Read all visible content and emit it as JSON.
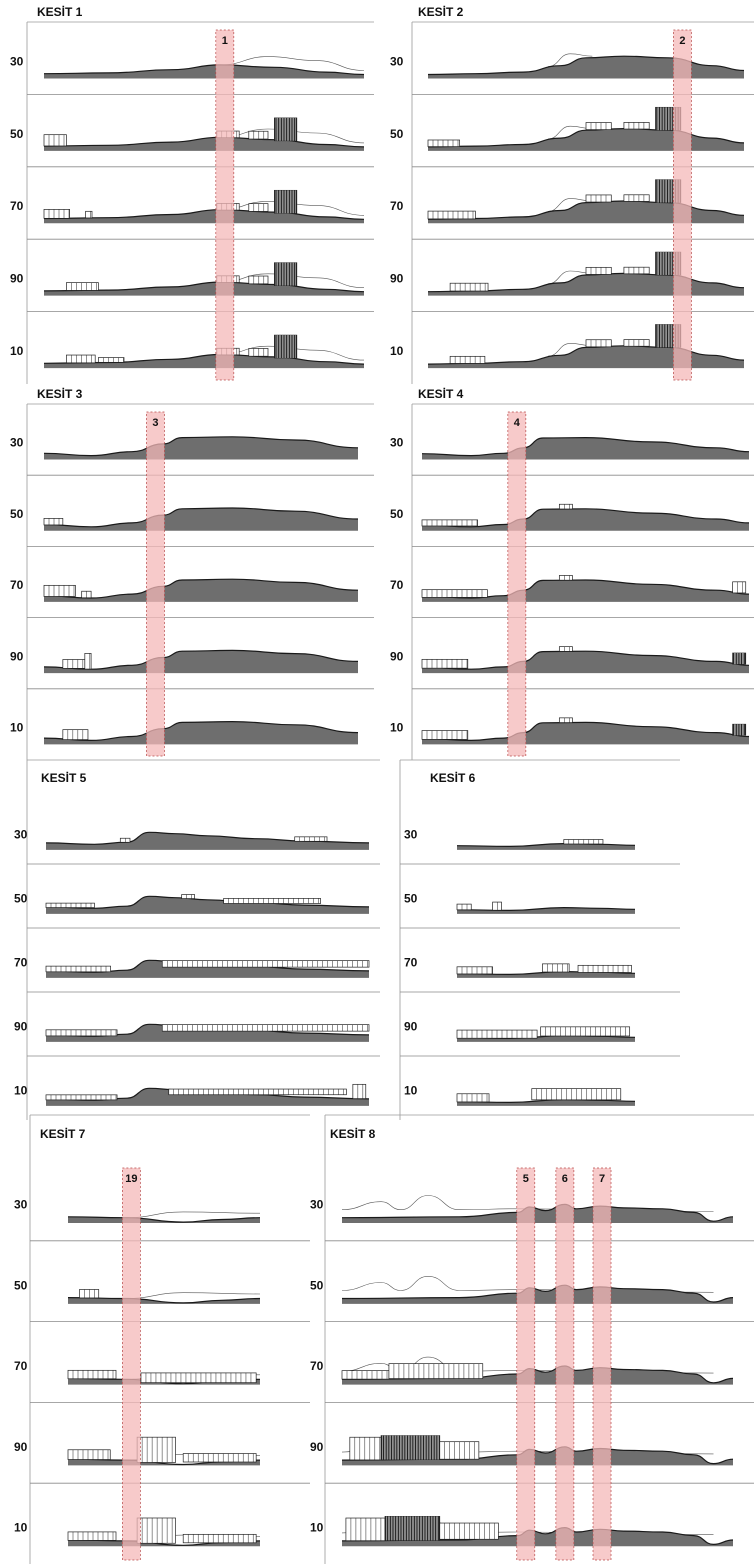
{
  "colors": {
    "terrain": "#6e6e6e",
    "terrain_edge": "#1a1a1a",
    "marker_fill": "#f4b8b8",
    "marker_edge": "#b84a4a",
    "frame": "#9a9a9a",
    "row_divider": "#8a8a8a",
    "building": "#222222"
  },
  "panels": [
    {
      "id": "kesit-1",
      "title": "KESİT 1",
      "rows": [
        "30",
        "50",
        "70",
        "90",
        "10"
      ],
      "profile": [
        [
          0,
          0.12
        ],
        [
          0.2,
          0.14
        ],
        [
          0.4,
          0.22
        ],
        [
          0.55,
          0.34
        ],
        [
          0.72,
          0.28
        ],
        [
          0.88,
          0.16
        ],
        [
          1,
          0.1
        ]
      ],
      "ghost": [
        [
          0.55,
          0.34
        ],
        [
          0.7,
          0.55
        ],
        [
          0.85,
          0.45
        ],
        [
          1,
          0.2
        ]
      ],
      "markers": [
        {
          "label": "1",
          "at": 0.565
        }
      ],
      "buildings": [
        [],
        [
          {
            "x": 0.0,
            "w": 0.07,
            "h": 0.4,
            "dense": false
          },
          {
            "x": 0.54,
            "w": 0.07,
            "h": 0.2,
            "dense": false
          },
          {
            "x": 0.64,
            "w": 0.06,
            "h": 0.25,
            "dense": false
          },
          {
            "x": 0.72,
            "w": 0.07,
            "h": 0.9,
            "dense": true
          }
        ],
        [
          {
            "x": 0.0,
            "w": 0.08,
            "h": 0.3,
            "dense": false
          },
          {
            "x": 0.13,
            "w": 0.02,
            "h": 0.2,
            "dense": false
          },
          {
            "x": 0.54,
            "w": 0.07,
            "h": 0.2,
            "dense": false
          },
          {
            "x": 0.64,
            "w": 0.06,
            "h": 0.25,
            "dense": false
          },
          {
            "x": 0.72,
            "w": 0.07,
            "h": 0.9,
            "dense": true
          }
        ],
        [
          {
            "x": 0.07,
            "w": 0.1,
            "h": 0.25,
            "dense": false
          },
          {
            "x": 0.54,
            "w": 0.07,
            "h": 0.2,
            "dense": false
          },
          {
            "x": 0.64,
            "w": 0.06,
            "h": 0.25,
            "dense": false
          },
          {
            "x": 0.72,
            "w": 0.07,
            "h": 0.9,
            "dense": true
          }
        ],
        [
          {
            "x": 0.07,
            "w": 0.09,
            "h": 0.25,
            "dense": false
          },
          {
            "x": 0.17,
            "w": 0.08,
            "h": 0.12,
            "dense": false
          },
          {
            "x": 0.54,
            "w": 0.07,
            "h": 0.2,
            "dense": false
          },
          {
            "x": 0.64,
            "w": 0.06,
            "h": 0.25,
            "dense": false
          },
          {
            "x": 0.72,
            "w": 0.07,
            "h": 0.9,
            "dense": true
          }
        ]
      ]
    },
    {
      "id": "kesit-2",
      "title": "KESİT 2",
      "rows": [
        "30",
        "50",
        "70",
        "90",
        "10"
      ],
      "profile": [
        [
          0,
          0.1
        ],
        [
          0.15,
          0.12
        ],
        [
          0.3,
          0.16
        ],
        [
          0.42,
          0.32
        ],
        [
          0.5,
          0.52
        ],
        [
          0.62,
          0.56
        ],
        [
          0.76,
          0.52
        ],
        [
          0.9,
          0.32
        ],
        [
          1,
          0.2
        ]
      ],
      "ghost": [
        [
          0.38,
          0.3
        ],
        [
          0.45,
          0.62
        ],
        [
          0.52,
          0.56
        ]
      ],
      "markers": [
        {
          "label": "2",
          "at": 0.805
        }
      ],
      "buildings": [
        [],
        [
          {
            "x": 0.0,
            "w": 0.1,
            "h": 0.2,
            "dense": false
          },
          {
            "x": 0.5,
            "w": 0.08,
            "h": 0.22,
            "dense": false
          },
          {
            "x": 0.62,
            "w": 0.08,
            "h": 0.2,
            "dense": false
          },
          {
            "x": 0.72,
            "w": 0.08,
            "h": 0.9,
            "dense": true
          }
        ],
        [
          {
            "x": 0.0,
            "w": 0.15,
            "h": 0.25,
            "dense": false
          },
          {
            "x": 0.5,
            "w": 0.08,
            "h": 0.22,
            "dense": false
          },
          {
            "x": 0.62,
            "w": 0.08,
            "h": 0.2,
            "dense": false
          },
          {
            "x": 0.72,
            "w": 0.08,
            "h": 0.9,
            "dense": true
          }
        ],
        [
          {
            "x": 0.07,
            "w": 0.12,
            "h": 0.25,
            "dense": false
          },
          {
            "x": 0.5,
            "w": 0.08,
            "h": 0.22,
            "dense": false
          },
          {
            "x": 0.62,
            "w": 0.08,
            "h": 0.2,
            "dense": false
          },
          {
            "x": 0.72,
            "w": 0.08,
            "h": 0.9,
            "dense": true
          }
        ],
        [
          {
            "x": 0.07,
            "w": 0.11,
            "h": 0.22,
            "dense": false
          },
          {
            "x": 0.5,
            "w": 0.08,
            "h": 0.22,
            "dense": false
          },
          {
            "x": 0.62,
            "w": 0.08,
            "h": 0.2,
            "dense": false
          },
          {
            "x": 0.72,
            "w": 0.08,
            "h": 0.9,
            "dense": true
          }
        ]
      ]
    },
    {
      "id": "kesit-3",
      "title": "KESİT 3",
      "rows": [
        "30",
        "50",
        "70",
        "90",
        "10"
      ],
      "profile": [
        [
          0,
          0.16
        ],
        [
          0.15,
          0.1
        ],
        [
          0.28,
          0.2
        ],
        [
          0.38,
          0.4
        ],
        [
          0.44,
          0.56
        ],
        [
          0.6,
          0.58
        ],
        [
          0.8,
          0.5
        ],
        [
          1,
          0.3
        ]
      ],
      "ghost": [],
      "markers": [
        {
          "label": "3",
          "at": 0.355
        }
      ],
      "buildings": [
        [],
        [
          {
            "x": 0.0,
            "w": 0.06,
            "h": 0.2,
            "dense": false
          }
        ],
        [
          {
            "x": 0.0,
            "w": 0.1,
            "h": 0.4,
            "dense": false
          },
          {
            "x": 0.12,
            "w": 0.03,
            "h": 0.2,
            "dense": false
          }
        ],
        [
          {
            "x": 0.06,
            "w": 0.07,
            "h": 0.3,
            "dense": false
          },
          {
            "x": 0.13,
            "w": 0.02,
            "h": 0.6,
            "dense": false
          }
        ],
        [
          {
            "x": 0.06,
            "w": 0.08,
            "h": 0.35,
            "dense": false
          }
        ]
      ]
    },
    {
      "id": "kesit-4",
      "title": "KESİT 4",
      "rows": [
        "30",
        "50",
        "70",
        "90",
        "10"
      ],
      "profile": [
        [
          0,
          0.15
        ],
        [
          0.15,
          0.1
        ],
        [
          0.25,
          0.16
        ],
        [
          0.31,
          0.3
        ],
        [
          0.37,
          0.55
        ],
        [
          0.5,
          0.56
        ],
        [
          0.7,
          0.45
        ],
        [
          0.9,
          0.3
        ],
        [
          1,
          0.2
        ]
      ],
      "ghost": [],
      "markers": [
        {
          "label": "4",
          "at": 0.29
        }
      ],
      "buildings": [
        [],
        [
          {
            "x": 0.0,
            "w": 0.17,
            "h": 0.18,
            "dense": false
          },
          {
            "x": 0.42,
            "w": 0.04,
            "h": 0.12,
            "dense": false
          }
        ],
        [
          {
            "x": 0.0,
            "w": 0.2,
            "h": 0.25,
            "dense": false
          },
          {
            "x": 0.42,
            "w": 0.04,
            "h": 0.12,
            "dense": false
          },
          {
            "x": 0.95,
            "w": 0.04,
            "h": 0.4,
            "dense": false
          }
        ],
        [
          {
            "x": 0.0,
            "w": 0.14,
            "h": 0.3,
            "dense": false
          },
          {
            "x": 0.42,
            "w": 0.04,
            "h": 0.12,
            "dense": false
          },
          {
            "x": 0.95,
            "w": 0.04,
            "h": 0.4,
            "dense": true
          }
        ],
        [
          {
            "x": 0.0,
            "w": 0.14,
            "h": 0.3,
            "dense": false
          },
          {
            "x": 0.42,
            "w": 0.04,
            "h": 0.12,
            "dense": false
          },
          {
            "x": 0.95,
            "w": 0.04,
            "h": 0.4,
            "dense": true
          }
        ]
      ]
    },
    {
      "id": "kesit-5",
      "title": "KESİT 5",
      "rows": [
        "30",
        "50",
        "70",
        "90",
        "10"
      ],
      "profile": [
        [
          0,
          0.2
        ],
        [
          0.15,
          0.16
        ],
        [
          0.25,
          0.22
        ],
        [
          0.32,
          0.5
        ],
        [
          0.4,
          0.46
        ],
        [
          0.5,
          0.4
        ],
        [
          0.65,
          0.32
        ],
        [
          0.8,
          0.25
        ],
        [
          1,
          0.2
        ]
      ],
      "ghost": [],
      "markers": [],
      "buildings": [
        [
          {
            "x": 0.23,
            "w": 0.03,
            "h": 0.1,
            "dense": false
          },
          {
            "x": 0.77,
            "w": 0.1,
            "h": 0.12,
            "dense": false
          }
        ],
        [
          {
            "x": 0.0,
            "w": 0.15,
            "h": 0.12,
            "dense": false
          },
          {
            "x": 0.42,
            "w": 0.04,
            "h": 0.1,
            "dense": false
          },
          {
            "x": 0.55,
            "w": 0.3,
            "h": 0.15,
            "dense": false
          }
        ],
        [
          {
            "x": 0.0,
            "w": 0.2,
            "h": 0.18,
            "dense": false
          },
          {
            "x": 0.36,
            "w": 0.64,
            "h": 0.22,
            "dense": false
          }
        ],
        [
          {
            "x": 0.0,
            "w": 0.22,
            "h": 0.2,
            "dense": false
          },
          {
            "x": 0.36,
            "w": 0.64,
            "h": 0.22,
            "dense": false
          }
        ],
        [
          {
            "x": 0.0,
            "w": 0.22,
            "h": 0.15,
            "dense": false
          },
          {
            "x": 0.38,
            "w": 0.55,
            "h": 0.18,
            "dense": false
          },
          {
            "x": 0.95,
            "w": 0.04,
            "h": 0.6,
            "dense": false
          }
        ]
      ]
    },
    {
      "id": "kesit-6",
      "title": "KESİT 6",
      "rows": [
        "30",
        "50",
        "70",
        "90",
        "10"
      ],
      "profile": [
        [
          0,
          0.12
        ],
        [
          0.3,
          0.1
        ],
        [
          0.6,
          0.18
        ],
        [
          0.8,
          0.16
        ],
        [
          1,
          0.13
        ]
      ],
      "ghost": [],
      "markers": [],
      "buildings": [
        [
          {
            "x": 0.6,
            "w": 0.22,
            "h": 0.12,
            "dense": false
          }
        ],
        [
          {
            "x": 0.0,
            "w": 0.08,
            "h": 0.18,
            "dense": false
          },
          {
            "x": 0.2,
            "w": 0.05,
            "h": 0.3,
            "dense": false
          }
        ],
        [
          {
            "x": 0.0,
            "w": 0.2,
            "h": 0.25,
            "dense": false
          },
          {
            "x": 0.48,
            "w": 0.15,
            "h": 0.3,
            "dense": false
          },
          {
            "x": 0.68,
            "w": 0.3,
            "h": 0.25,
            "dense": false
          }
        ],
        [
          {
            "x": 0.0,
            "w": 0.45,
            "h": 0.3,
            "dense": false
          },
          {
            "x": 0.47,
            "w": 0.5,
            "h": 0.35,
            "dense": false
          }
        ],
        [
          {
            "x": 0.0,
            "w": 0.18,
            "h": 0.3,
            "dense": false
          },
          {
            "x": 0.42,
            "w": 0.5,
            "h": 0.45,
            "dense": false
          }
        ]
      ]
    },
    {
      "id": "kesit-7",
      "title": "KESİT 7",
      "rows": [
        "30",
        "50",
        "70",
        "90",
        "10"
      ],
      "profile": [
        [
          0,
          0.14
        ],
        [
          0.3,
          0.12
        ],
        [
          0.6,
          0.02
        ],
        [
          0.8,
          0.08
        ],
        [
          1,
          0.12
        ]
      ],
      "ghost": [
        [
          0.3,
          0.12
        ],
        [
          0.6,
          0.25
        ],
        [
          1,
          0.22
        ]
      ],
      "markers": [
        {
          "label": "19",
          "at": 0.33
        }
      ],
      "buildings": [
        [],
        [
          {
            "x": 0.06,
            "w": 0.1,
            "h": 0.25,
            "dense": false
          }
        ],
        [
          {
            "x": 0.0,
            "w": 0.25,
            "h": 0.25,
            "dense": false
          },
          {
            "x": 0.38,
            "w": 0.6,
            "h": 0.3,
            "dense": false
          }
        ],
        [
          {
            "x": 0.0,
            "w": 0.22,
            "h": 0.3,
            "dense": false
          },
          {
            "x": 0.36,
            "w": 0.2,
            "h": 0.9,
            "dense": false
          },
          {
            "x": 0.6,
            "w": 0.38,
            "h": 0.25,
            "dense": false
          }
        ],
        [
          {
            "x": 0.0,
            "w": 0.25,
            "h": 0.25,
            "dense": false
          },
          {
            "x": 0.36,
            "w": 0.2,
            "h": 0.9,
            "dense": false
          },
          {
            "x": 0.6,
            "w": 0.38,
            "h": 0.25,
            "dense": false
          }
        ]
      ]
    },
    {
      "id": "kesit-8",
      "title": "KESİT 8",
      "rows": [
        "30",
        "50",
        "70",
        "90",
        "10"
      ],
      "profile": [
        [
          0,
          0.12
        ],
        [
          0.3,
          0.14
        ],
        [
          0.45,
          0.24
        ],
        [
          0.48,
          0.36
        ],
        [
          0.52,
          0.28
        ],
        [
          0.57,
          0.42
        ],
        [
          0.6,
          0.32
        ],
        [
          0.66,
          0.38
        ],
        [
          0.72,
          0.34
        ],
        [
          0.82,
          0.32
        ],
        [
          0.9,
          0.24
        ],
        [
          0.95,
          0.04
        ],
        [
          1,
          0.14
        ]
      ],
      "ghost": [
        [
          0.0,
          0.3
        ],
        [
          0.1,
          0.48
        ],
        [
          0.15,
          0.3
        ],
        [
          0.22,
          0.62
        ],
        [
          0.3,
          0.3
        ],
        [
          0.45,
          0.32
        ],
        [
          0.95,
          0.26
        ]
      ],
      "markers": [
        {
          "label": "5",
          "at": 0.47
        },
        {
          "label": "6",
          "at": 0.57
        },
        {
          "label": "7",
          "at": 0.665
        }
      ],
      "buildings": [
        [],
        [],
        [
          {
            "x": 0.0,
            "w": 0.12,
            "h": 0.25,
            "dense": false
          },
          {
            "x": 0.12,
            "w": 0.24,
            "h": 0.5,
            "dense": false
          }
        ],
        [
          {
            "x": 0.02,
            "w": 0.08,
            "h": 0.8,
            "dense": false
          },
          {
            "x": 0.1,
            "w": 0.15,
            "h": 0.85,
            "dense": true
          },
          {
            "x": 0.25,
            "w": 0.1,
            "h": 0.6,
            "dense": false
          }
        ],
        [
          {
            "x": 0.01,
            "w": 0.1,
            "h": 0.8,
            "dense": false
          },
          {
            "x": 0.11,
            "w": 0.14,
            "h": 0.85,
            "dense": true
          },
          {
            "x": 0.25,
            "w": 0.15,
            "h": 0.55,
            "dense": false
          }
        ]
      ]
    }
  ]
}
